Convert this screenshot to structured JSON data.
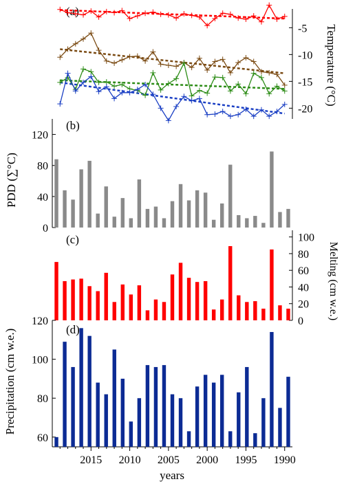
{
  "chart_data": [
    {
      "panel": "(a)",
      "type": "line",
      "ylabel": "Temperature (°C)",
      "ylim": [
        -22,
        -1.5
      ],
      "yticks": [
        -5,
        -10,
        -15,
        -20
      ],
      "years": [
        2019,
        2018,
        2017,
        2016,
        2015,
        2014,
        2013,
        2012,
        2011,
        2010,
        2009,
        2008,
        2007,
        2006,
        2005,
        2004,
        2003,
        2002,
        2001,
        2000,
        1999,
        1998,
        1997,
        1996,
        1995,
        1994,
        1993,
        1992,
        1991,
        1990
      ],
      "series": [
        {
          "color": "#ff0000",
          "trend_start": -1.7,
          "trend_end": -3.3,
          "values": [
            -1.6,
            -2.2,
            -2.4,
            -2.6,
            -1.9,
            -3.0,
            -2.0,
            -2.2,
            -1.8,
            -3.3,
            -2.8,
            -2.3,
            -2.1,
            -2.5,
            -2.6,
            -3.2,
            -2.4,
            -2.7,
            -3.0,
            -4.6,
            -3.3,
            -2.3,
            -2.5,
            -3.2,
            -3.4,
            -2.8,
            -3.9,
            -0.8,
            -3.4,
            -2.9
          ]
        },
        {
          "color": "#7a4a12",
          "trend_start": -9.0,
          "trend_end": -13.5,
          "values": [
            -10.5,
            -9.0,
            -8.0,
            -7.1,
            -6.0,
            -9.2,
            -11.2,
            -11.6,
            -11.0,
            -10.4,
            -10.3,
            -11.2,
            -9.5,
            -11.8,
            -12.0,
            -12.2,
            -11.5,
            -12.4,
            -10.7,
            -12.9,
            -11.3,
            -10.9,
            -13.4,
            -11.5,
            -10.6,
            -11.3,
            -13.2,
            -13.4,
            -13.7,
            -15.7
          ]
        },
        {
          "color": "#2c8c16",
          "trend_start": -14.8,
          "trend_end": -16.4,
          "values": [
            -15.2,
            -14.3,
            -16.5,
            -12.7,
            -13.2,
            -15.2,
            -15.1,
            -15.9,
            -15.6,
            -16.4,
            -16.7,
            -17.6,
            -13.4,
            -16.6,
            -15.4,
            -14.5,
            -11.6,
            -17.7,
            -16.7,
            -17.2,
            -14.2,
            -14.3,
            -16.8,
            -15.5,
            -17.3,
            -13.5,
            -14.3,
            -17.3,
            -15.9,
            -16.8
          ]
        },
        {
          "color": "#1a3fc4",
          "trend_start": -15.2,
          "trend_end": -21.0,
          "values": [
            -19.2,
            -13.5,
            -16.8,
            -15.2,
            -14.1,
            -16.9,
            -16.0,
            -18.2,
            -17.1,
            -17.1,
            -16.5,
            -15.6,
            -17.4,
            -20.0,
            -22.3,
            -19.7,
            -17.8,
            -18.6,
            -18.2,
            -21.2,
            -21.1,
            -20.6,
            -21.5,
            -21.2,
            -20.2,
            -21.5,
            -20.3,
            -21.5,
            -20.6,
            -19.3
          ]
        }
      ]
    },
    {
      "panel": "(b)",
      "type": "bar",
      "ylabel": "PDD (∑°C)",
      "ylim": [
        0,
        140
      ],
      "yticks": [
        0,
        40,
        80,
        120
      ],
      "color": "#8a8a8a",
      "values": [
        88,
        48,
        36,
        75,
        86,
        18,
        53,
        14,
        38,
        12,
        62,
        24,
        27,
        12,
        34,
        56,
        35,
        48,
        45,
        10,
        31,
        81,
        16,
        12,
        15,
        6,
        98,
        20,
        24
      ]
    },
    {
      "panel": "(c)",
      "type": "bar",
      "ylabel": "Melting (cm w.e.)",
      "ylim": [
        0,
        108
      ],
      "yticks": [
        0,
        20,
        40,
        60,
        80,
        100
      ],
      "color": "#ff0000",
      "values": [
        70,
        47,
        49,
        50,
        41,
        35,
        57,
        22,
        43,
        31,
        42,
        12,
        25,
        22,
        55,
        69,
        51,
        46,
        47,
        13,
        25,
        89,
        30,
        22,
        23,
        14,
        85,
        18,
        14
      ]
    },
    {
      "panel": "(d)",
      "type": "bar",
      "ylabel": "Precipitation (cm w.e.)",
      "ylim": [
        55,
        120
      ],
      "yticks": [
        60,
        80,
        100,
        120
      ],
      "color": "#0c2b94",
      "values": [
        60,
        109,
        96,
        116,
        112,
        88,
        82,
        105,
        90,
        68,
        80,
        97,
        96,
        97,
        82,
        80,
        63,
        86,
        92,
        88,
        92,
        63,
        83,
        96,
        62,
        80,
        114,
        75,
        91
      ]
    }
  ],
  "xaxis": {
    "label": "years",
    "ticks": [
      2015,
      2010,
      2005,
      2000,
      1995,
      1990
    ],
    "range": [
      2020,
      1989
    ]
  }
}
